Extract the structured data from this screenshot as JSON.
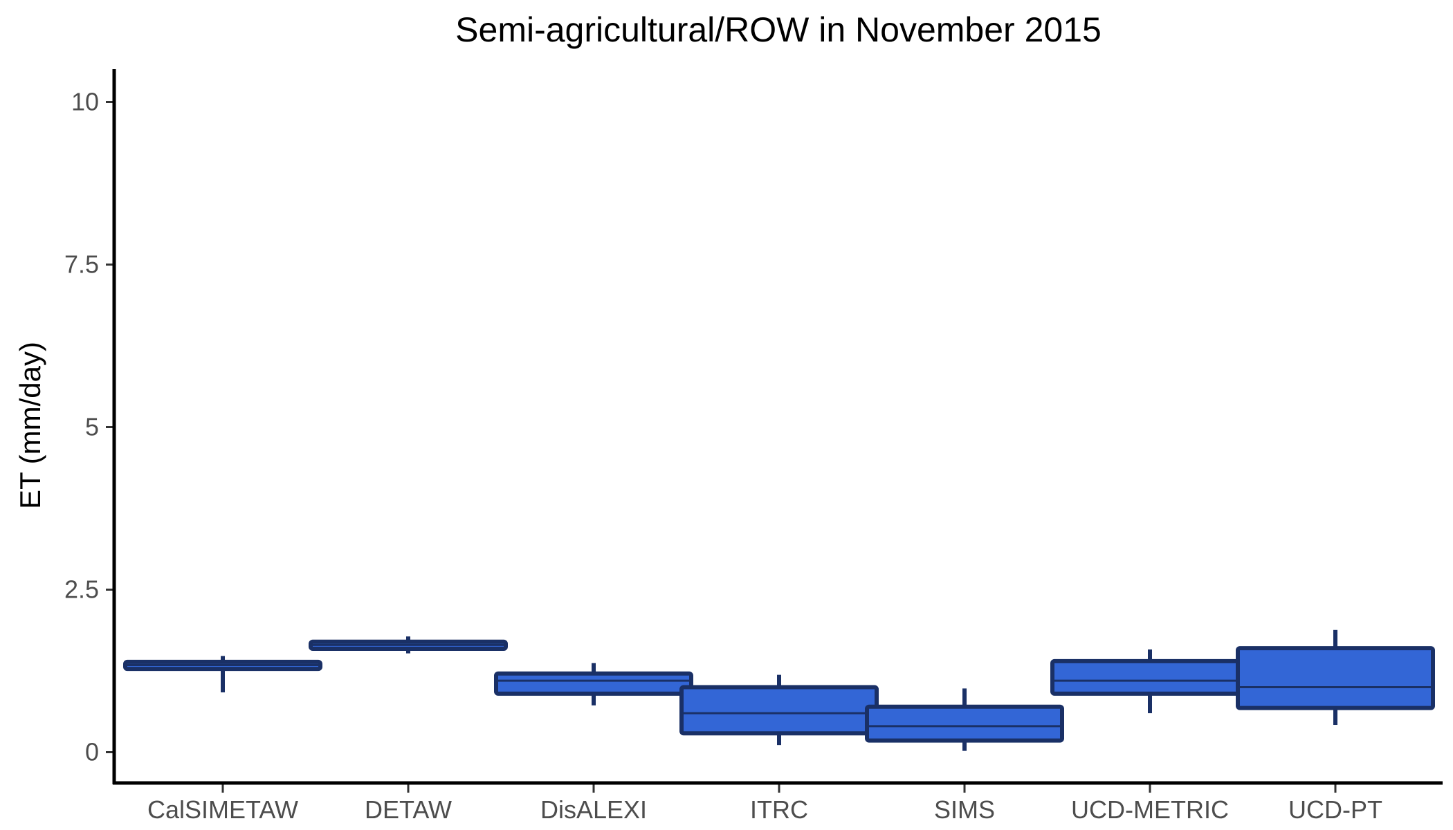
{
  "chart_data": {
    "type": "box",
    "title": "Semi-agricultural/ROW in November 2015",
    "xlabel": "",
    "ylabel": "ET (mm/day)",
    "ylim": [
      -0.5,
      10.5
    ],
    "yticks": [
      0,
      2.5,
      5,
      7.5,
      10
    ],
    "ytick_labels": [
      "0",
      "2.5",
      "5",
      "7.5",
      "10"
    ],
    "grid": false,
    "legend": "none",
    "colors": {
      "box_fill": "#3366d6",
      "box_stroke": "#1a3066",
      "axis": "#000000",
      "tick_label": "#4d4d4d"
    },
    "categories": [
      "CalSIMETAW",
      "DETAW",
      "DisALEXI",
      "ITRC",
      "SIMS",
      "UCD-METRIC",
      "UCD-PT"
    ],
    "boxes": [
      {
        "category": "CalSIMETAW",
        "min": 0.92,
        "q1": 1.28,
        "median": 1.34,
        "q3": 1.39,
        "max": 1.48
      },
      {
        "category": "DETAW",
        "min": 1.52,
        "q1": 1.59,
        "median": 1.65,
        "q3": 1.7,
        "max": 1.78
      },
      {
        "category": "DisALEXI",
        "min": 0.72,
        "q1": 0.9,
        "median": 1.1,
        "q3": 1.21,
        "max": 1.37
      },
      {
        "category": "ITRC",
        "min": 0.11,
        "q1": 0.29,
        "median": 0.6,
        "q3": 1.0,
        "max": 1.19
      },
      {
        "category": "SIMS",
        "min": 0.02,
        "q1": 0.18,
        "median": 0.4,
        "q3": 0.7,
        "max": 0.98
      },
      {
        "category": "UCD-METRIC",
        "min": 0.6,
        "q1": 0.9,
        "median": 1.1,
        "q3": 1.4,
        "max": 1.58
      },
      {
        "category": "UCD-PT",
        "min": 0.42,
        "q1": 0.68,
        "median": 1.0,
        "q3": 1.6,
        "max": 1.88
      }
    ]
  }
}
